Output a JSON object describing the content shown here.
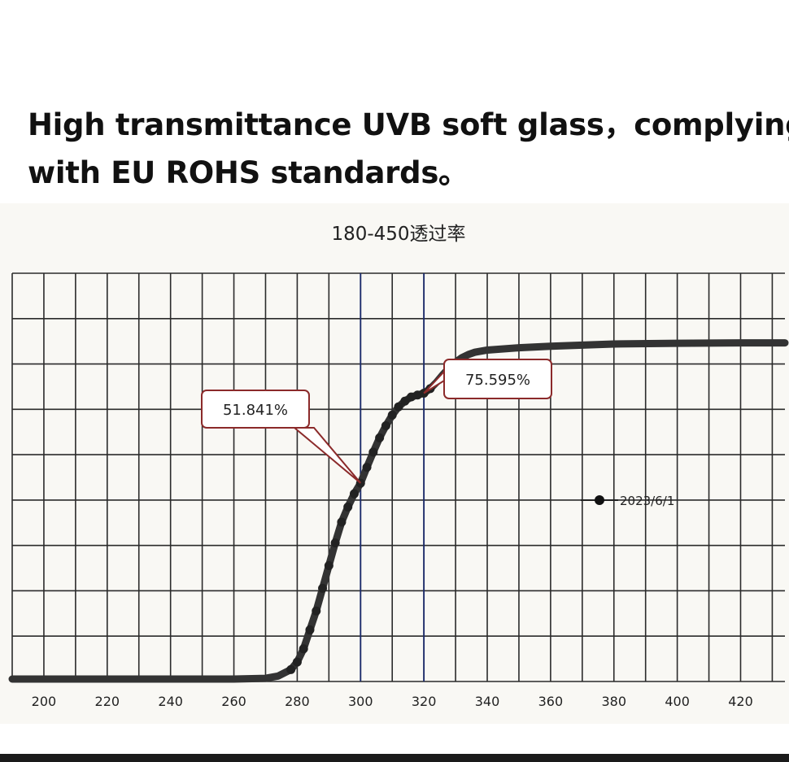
{
  "headline": {
    "line1": "High transmittance UVB soft glass，complying",
    "line2": "with EU ROHS standards。"
  },
  "chart_data": {
    "type": "line",
    "title": "180-450透过率",
    "xlabel": "",
    "ylabel": "",
    "xlim": [
      190,
      434
    ],
    "ylim": [
      0,
      100
    ],
    "xticks": [
      200,
      220,
      240,
      260,
      280,
      300,
      320,
      340,
      360,
      380,
      400,
      420
    ],
    "grid": true,
    "legend_position": "right-middle",
    "series": [
      {
        "name": "2023/6/1",
        "color": "#333333",
        "x": [
          190,
          200,
          220,
          240,
          260,
          270,
          274,
          278,
          280,
          282,
          284,
          286,
          288,
          290,
          292,
          294,
          296,
          298,
          300,
          302,
          304,
          306,
          308,
          310,
          312,
          314,
          316,
          318,
          320,
          322,
          324,
          326,
          328,
          330,
          332,
          334,
          336,
          340,
          350,
          360,
          370,
          380,
          400,
          420,
          434
        ],
        "y": [
          0,
          0,
          0,
          0,
          0,
          0.2,
          0.8,
          2.5,
          4.5,
          8,
          13,
          18,
          24,
          30,
          36,
          41.5,
          45.5,
          49,
          51.8,
          56,
          60,
          63.8,
          67,
          69.8,
          72,
          73.5,
          74.6,
          75.1,
          75.6,
          76.8,
          78.5,
          80.5,
          82.3,
          83.8,
          85,
          85.8,
          86.4,
          87,
          87.6,
          88,
          88.3,
          88.6,
          88.8,
          88.9,
          88.9
        ]
      }
    ],
    "vlines": [
      300,
      320
    ],
    "annotations": [
      {
        "text": "51.841%",
        "x": 300,
        "y": 51.841
      },
      {
        "text": "75.595%",
        "x": 320,
        "y": 75.595
      }
    ]
  }
}
